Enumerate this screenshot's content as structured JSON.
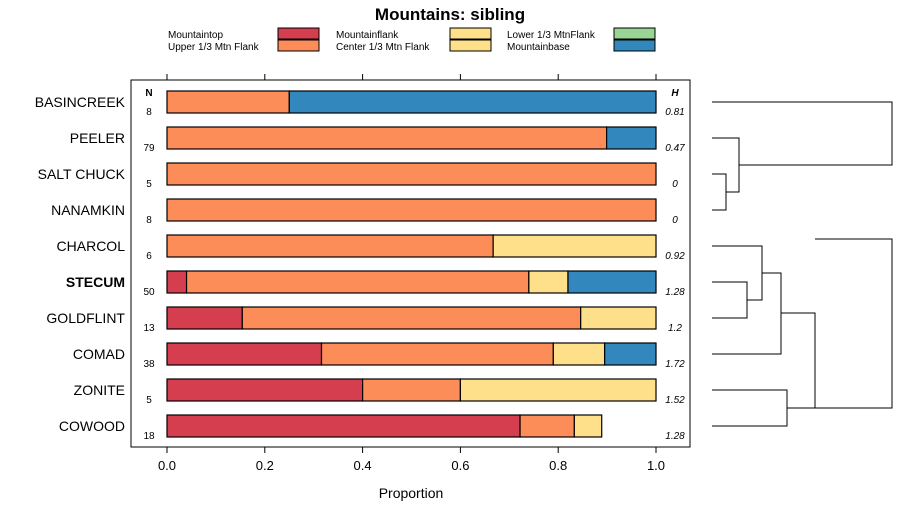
{
  "chart_data": {
    "type": "bar",
    "orientation": "horizontal",
    "stacked": true,
    "title": "Mountains: sibling",
    "xlabel": "Proportion",
    "ylabel": "",
    "xlim": [
      0,
      1
    ],
    "xticks": [
      "0.0",
      "0.2",
      "0.4",
      "0.6",
      "0.8",
      "1.0"
    ],
    "n_header": "N",
    "h_header": "H",
    "legend": [
      {
        "name": "Mountaintop",
        "color": "#d53e4f"
      },
      {
        "name": "Upper 1/3 Mtn Flank",
        "color": "#fc8d59"
      },
      {
        "name": "Mountainflank",
        "color": "#fee08b"
      },
      {
        "name": "Center 1/3 Mtn Flank",
        "color": "#fee08b"
      },
      {
        "name": "Lower 1/3 MtnFlank",
        "color": "#99d594"
      },
      {
        "name": "Mountainbase",
        "color": "#3288bd"
      }
    ],
    "categories": [
      "BASINCREEK",
      "PEELER",
      "SALT CHUCK",
      "NANAMKIN",
      "CHARCOL",
      "STECUM",
      "GOLDFLINT",
      "COMAD",
      "ZONITE",
      "COWOOD"
    ],
    "highlight": "STECUM",
    "n": [
      "8",
      "79",
      "5",
      "8",
      "6",
      "50",
      "13",
      "38",
      "5",
      "18"
    ],
    "h": [
      "0.81",
      "0.47",
      "0",
      "0",
      "0.92",
      "1.28",
      "1.2",
      "1.72",
      "1.52",
      "1.28"
    ],
    "series": [
      {
        "name": "Mountaintop",
        "values": [
          0,
          0,
          0,
          0,
          0,
          0.04,
          0.154,
          0.316,
          0.4,
          0.722
        ]
      },
      {
        "name": "Upper 1/3 Mtn Flank",
        "values": [
          0.25,
          0.899,
          1.0,
          1.0,
          0.667,
          0.7,
          0.692,
          0.474,
          0.2,
          0.111
        ]
      },
      {
        "name": "Center 1/3 Mtn Flank",
        "values": [
          0,
          0,
          0,
          0,
          0.333,
          0.08,
          0.154,
          0.105,
          0.4,
          0.056
        ]
      },
      {
        "name": "Mountainbase",
        "values": [
          0.75,
          0.101,
          0,
          0,
          0,
          0.18,
          0,
          0.105,
          0,
          0
        ]
      }
    ]
  }
}
